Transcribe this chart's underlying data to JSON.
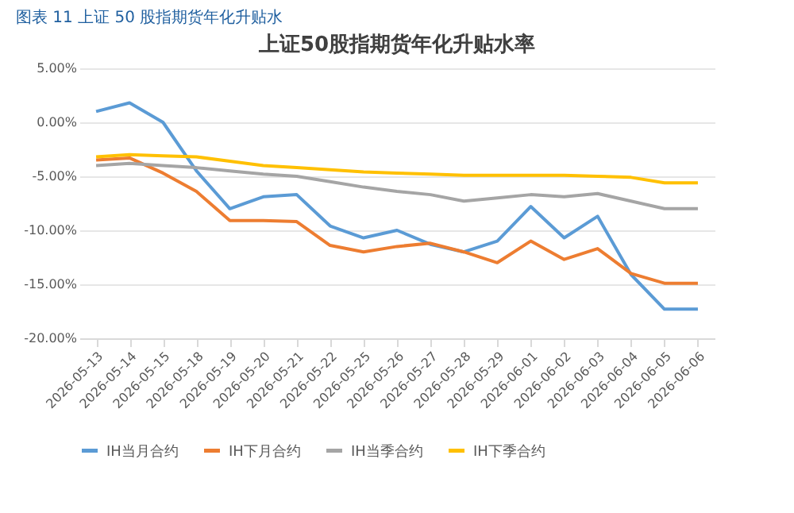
{
  "chart_data": {
    "type": "line",
    "title": "上证50股指期货年化升贴水率",
    "annotations": [
      "图表 11  上证 50 股指期货年化升贴水"
    ],
    "categories": [
      "2026-05-13",
      "2026-05-14",
      "2026-05-15",
      "2026-05-18",
      "2026-05-19",
      "2026-05-20",
      "2026-05-21",
      "2026-05-22",
      "2026-05-25",
      "2026-05-26",
      "2026-05-27",
      "2026-05-28",
      "2026-05-29",
      "2026-06-01",
      "2026-06-02",
      "2026-06-03",
      "2026-06-04",
      "2026-06-05",
      "2026-06-06"
    ],
    "series": [
      {
        "name": "IH当月合约",
        "color": "#5b9bd5",
        "values": [
          1.0,
          1.8,
          0.0,
          -4.5,
          -8.0,
          -6.9,
          -6.7,
          -9.6,
          -10.7,
          -10.0,
          -11.3,
          -12.0,
          -11.0,
          -7.8,
          -10.7,
          -8.7,
          -14.1,
          -17.3,
          -17.3
        ]
      },
      {
        "name": "IH下月合约",
        "color": "#ed7d31",
        "values": [
          -3.5,
          -3.3,
          -4.7,
          -6.4,
          -9.1,
          -9.1,
          -9.2,
          -11.4,
          -12.0,
          -11.5,
          -11.2,
          -12.0,
          -13.0,
          -11.0,
          -12.7,
          -11.7,
          -14.0,
          -14.9,
          -14.9
        ]
      },
      {
        "name": "IH当季合约",
        "color": "#a5a5a5",
        "values": [
          -4.0,
          -3.8,
          -4.0,
          -4.2,
          -4.5,
          -4.8,
          -5.0,
          -5.5,
          -6.0,
          -6.4,
          -6.7,
          -7.3,
          -7.0,
          -6.7,
          -6.9,
          -6.6,
          -7.3,
          -8.0,
          -8.0
        ]
      },
      {
        "name": "IH下季合约",
        "color": "#ffc000",
        "values": [
          -3.2,
          -3.0,
          -3.1,
          -3.2,
          -3.6,
          -4.0,
          -4.2,
          -4.4,
          -4.6,
          -4.7,
          -4.8,
          -4.9,
          -4.9,
          -4.9,
          -4.9,
          -5.0,
          -5.1,
          -5.6,
          -5.6
        ]
      }
    ],
    "ylim": [
      -20,
      5
    ],
    "yticks": [
      {
        "value": 5,
        "label": "5.00%"
      },
      {
        "value": 0,
        "label": "0.00%"
      },
      {
        "value": -5,
        "label": "-5.00%"
      },
      {
        "value": -10,
        "label": "-10.00%"
      },
      {
        "value": -15,
        "label": "-15.00%"
      },
      {
        "value": -20,
        "label": "-20.00%"
      }
    ],
    "grid": "y",
    "legend": "bottom",
    "marker": "none",
    "line_style": "solid"
  }
}
